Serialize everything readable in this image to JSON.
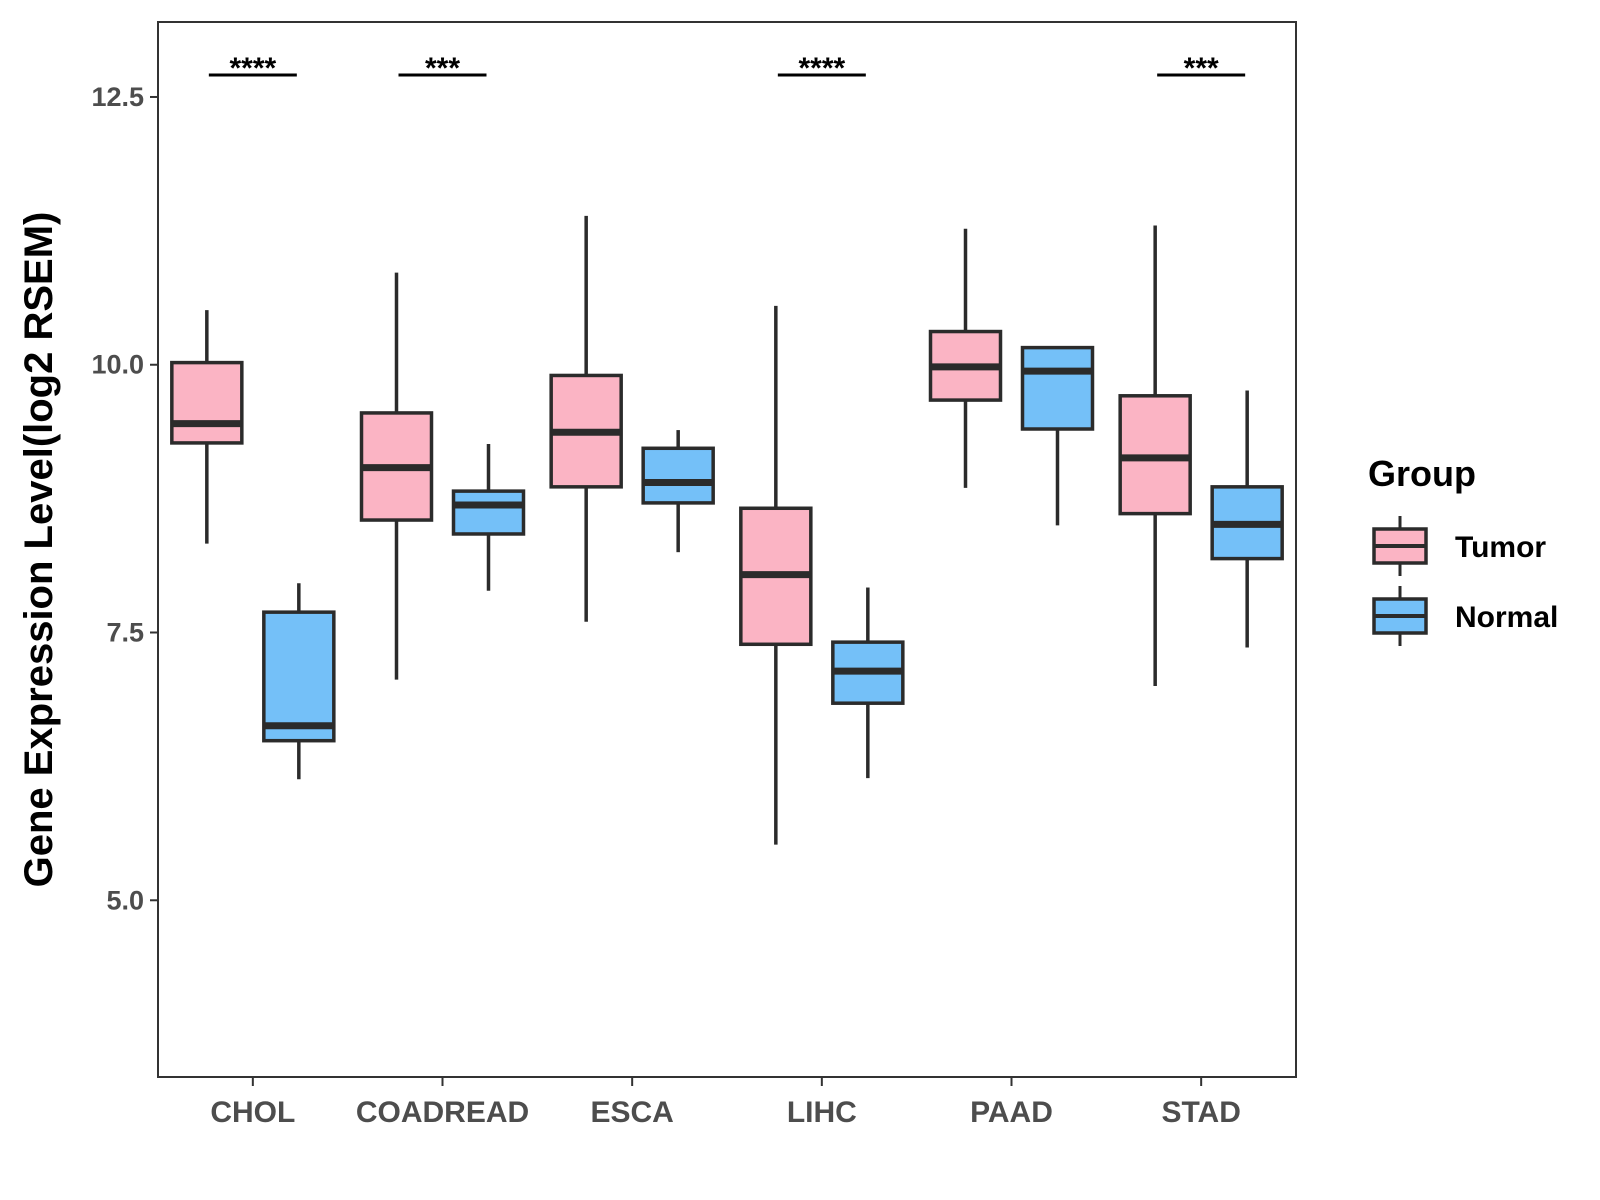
{
  "chart_data": {
    "type": "boxplot",
    "title": "",
    "xlabel": "",
    "ylabel": "Gene Expression Level(log2 RSEM)",
    "ylim": [
      3.35,
      13.2
    ],
    "yticks": [
      5.0,
      7.5,
      10.0,
      12.5
    ],
    "ytick_labels": [
      "5.0",
      "7.5",
      "10.0",
      "12.5"
    ],
    "categories": [
      "CHOL",
      "COADREAD",
      "ESCA",
      "LIHC",
      "PAAD",
      "STAD"
    ],
    "legend": {
      "title": "Group",
      "placement": "right",
      "entries": [
        "Tumor",
        "Normal"
      ]
    },
    "series": [
      {
        "name": "Tumor",
        "color": "#FBB4C4",
        "boxes": [
          {
            "category": "CHOL",
            "whisker_low": 8.33,
            "q1": 9.27,
            "median": 9.45,
            "q3": 10.02,
            "whisker_high": 10.51
          },
          {
            "category": "COADREAD",
            "whisker_low": 7.06,
            "q1": 8.55,
            "median": 9.04,
            "q3": 9.55,
            "whisker_high": 10.86
          },
          {
            "category": "ESCA",
            "whisker_low": 7.6,
            "q1": 8.86,
            "median": 9.37,
            "q3": 9.9,
            "whisker_high": 11.39
          },
          {
            "category": "LIHC",
            "whisker_low": 5.52,
            "q1": 7.39,
            "median": 8.04,
            "q3": 8.66,
            "whisker_high": 10.55
          },
          {
            "category": "PAAD",
            "whisker_low": 8.85,
            "q1": 9.67,
            "median": 9.98,
            "q3": 10.31,
            "whisker_high": 11.27
          },
          {
            "category": "STAD",
            "whisker_low": 7.0,
            "q1": 8.61,
            "median": 9.13,
            "q3": 9.71,
            "whisker_high": 11.3
          }
        ]
      },
      {
        "name": "Normal",
        "color": "#74C0F8",
        "boxes": [
          {
            "category": "CHOL",
            "whisker_low": 6.13,
            "q1": 6.49,
            "median": 6.63,
            "q3": 7.69,
            "whisker_high": 7.96
          },
          {
            "category": "COADREAD",
            "whisker_low": 7.89,
            "q1": 8.42,
            "median": 8.69,
            "q3": 8.82,
            "whisker_high": 9.26
          },
          {
            "category": "ESCA",
            "whisker_low": 8.25,
            "q1": 8.71,
            "median": 8.9,
            "q3": 9.22,
            "whisker_high": 9.39
          },
          {
            "category": "LIHC",
            "whisker_low": 6.14,
            "q1": 6.84,
            "median": 7.14,
            "q3": 7.41,
            "whisker_high": 7.92
          },
          {
            "category": "PAAD",
            "whisker_low": 8.5,
            "q1": 9.4,
            "median": 9.94,
            "q3": 10.16,
            "whisker_high": 10.16
          },
          {
            "category": "STAD",
            "whisker_low": 7.36,
            "q1": 8.19,
            "median": 8.51,
            "q3": 8.86,
            "whisker_high": 9.76
          }
        ]
      }
    ],
    "significance": [
      {
        "category": "CHOL",
        "label": "****"
      },
      {
        "category": "COADREAD",
        "label": "***"
      },
      {
        "category": "LIHC",
        "label": "****"
      },
      {
        "category": "STAD",
        "label": "***"
      }
    ]
  }
}
